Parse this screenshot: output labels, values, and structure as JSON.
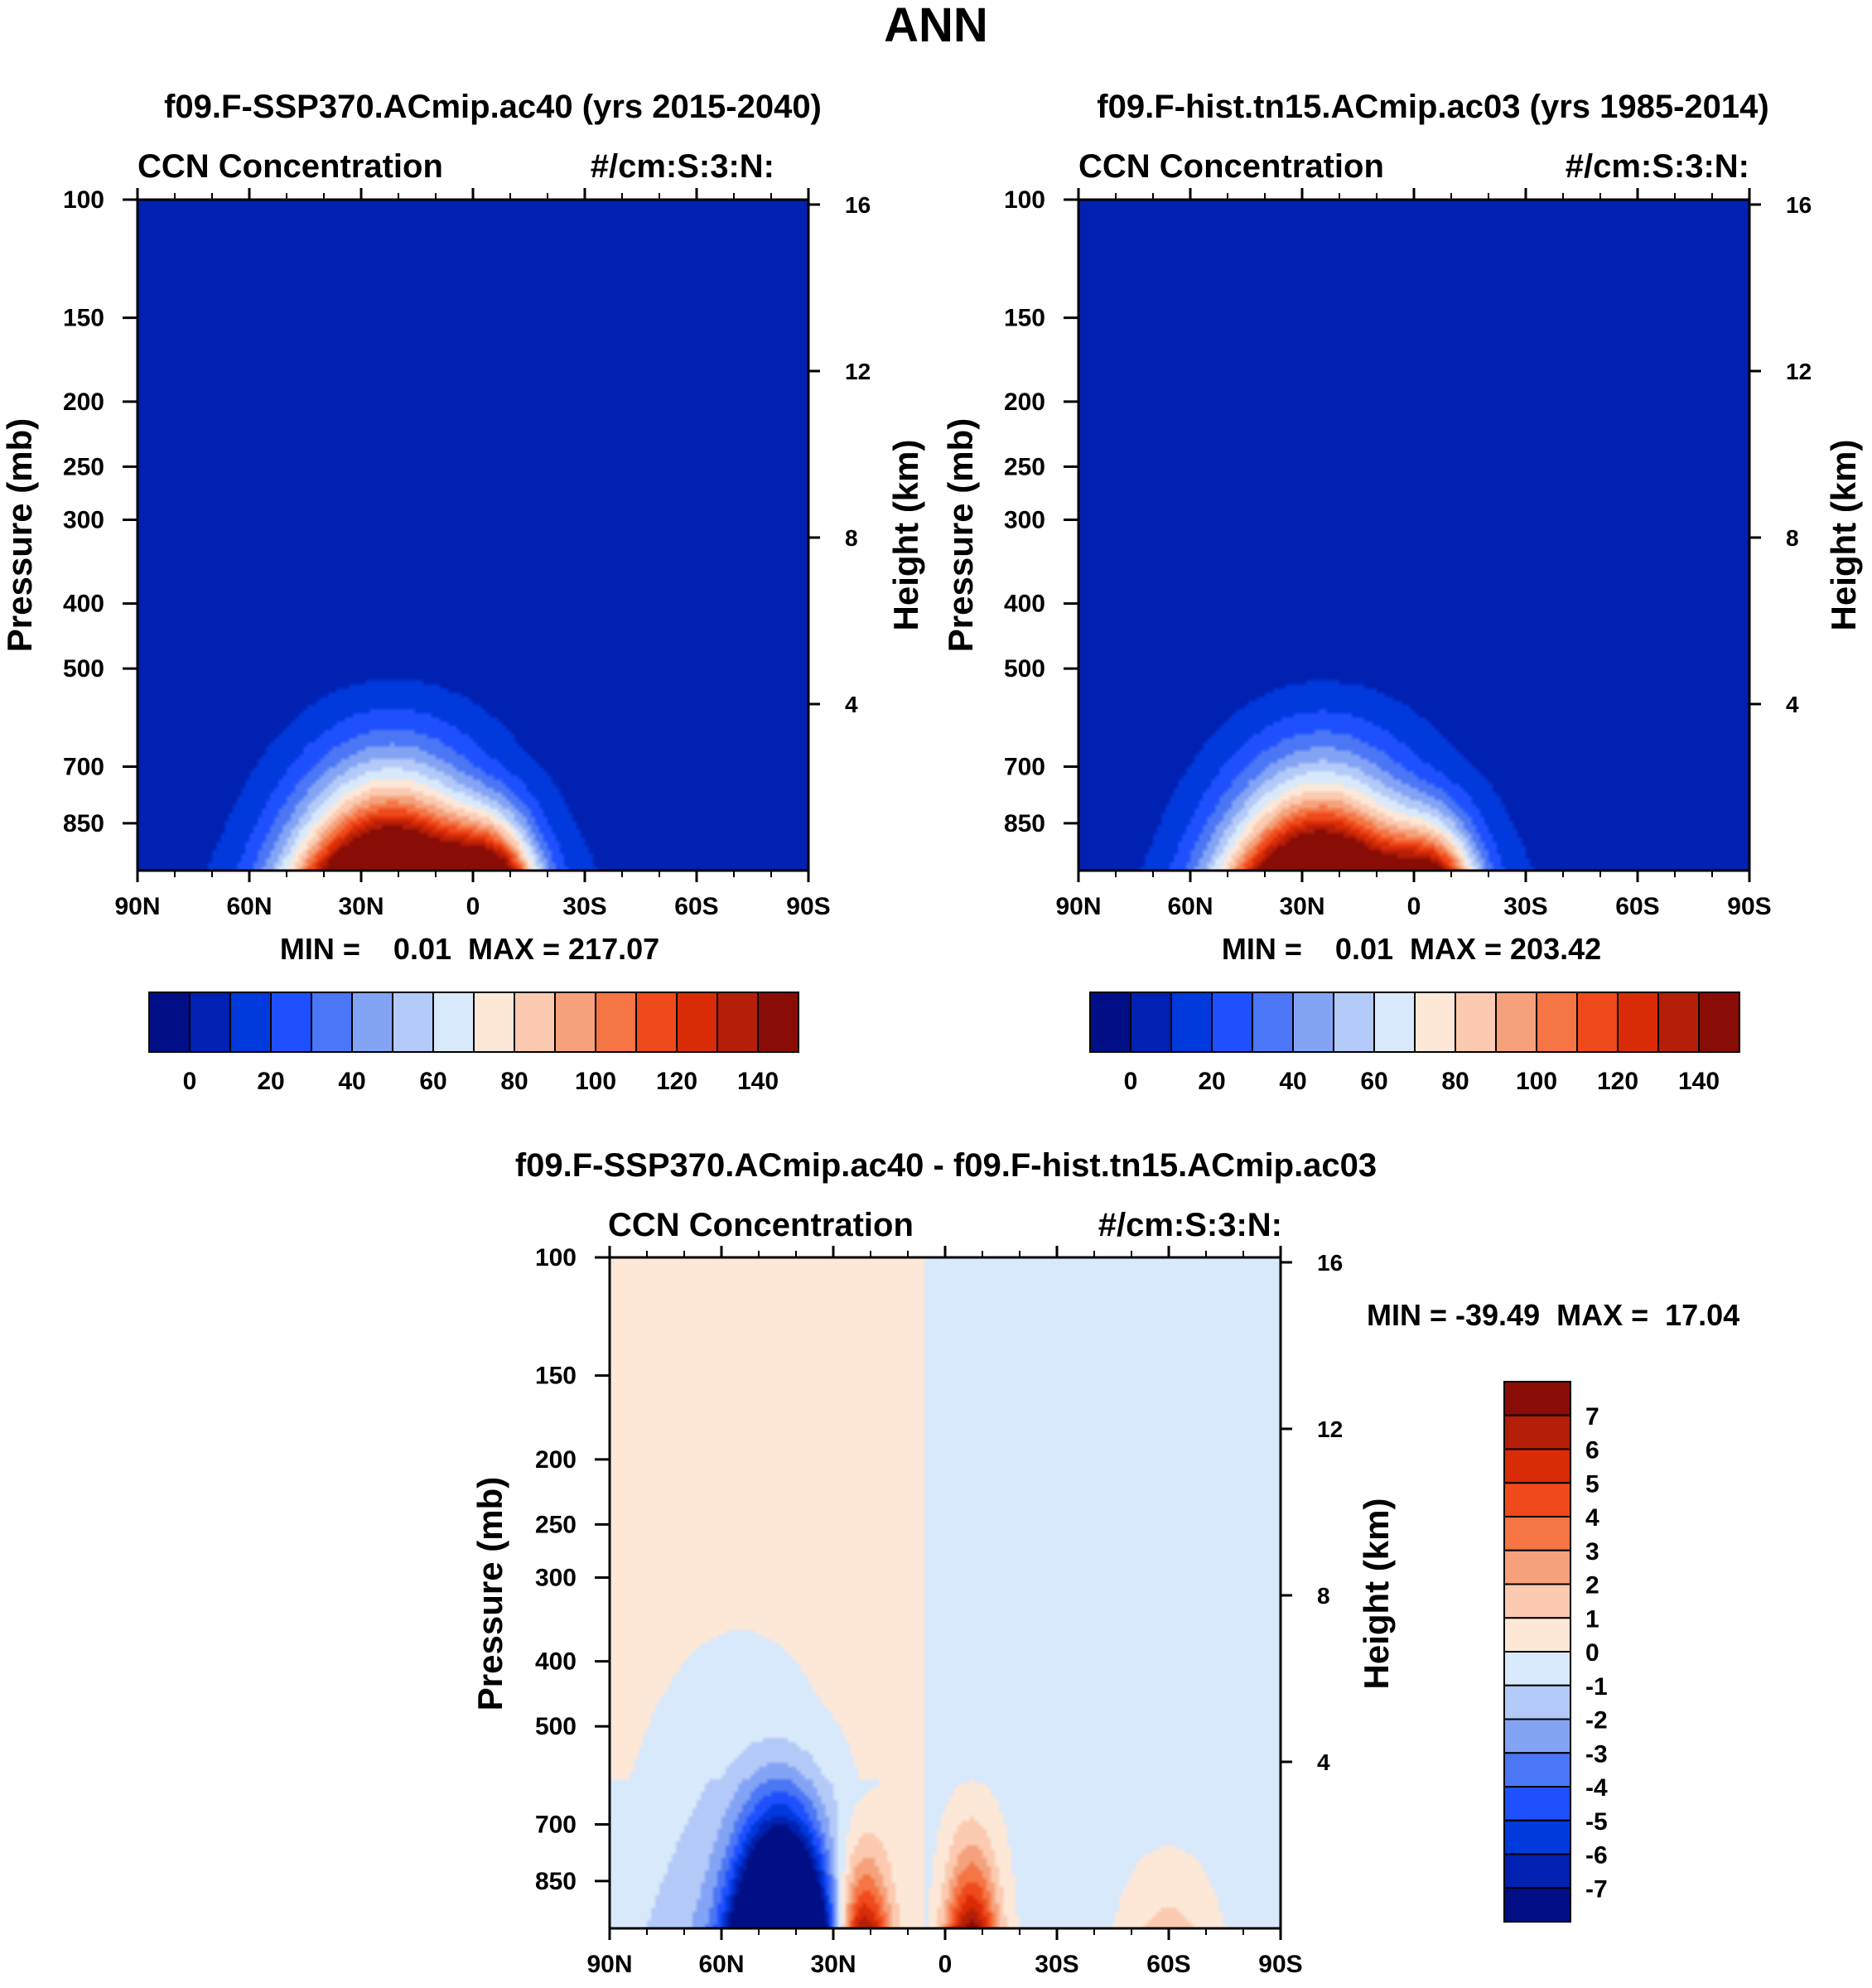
{
  "figure_title": "ANN",
  "colors": {
    "base_levels": [
      "#000f85",
      "#0021b2",
      "#0039dc",
      "#1f50ff",
      "#4b76f5",
      "#83a3f5",
      "#b3c9f7",
      "#d9e9fc",
      "#fde8d8",
      "#fbcab0",
      "#f5a27c",
      "#f57545",
      "#f04a1c",
      "#d92c06",
      "#b51e08",
      "#8a0c06"
    ],
    "diff_levels": [
      "#000f85",
      "#0021b2",
      "#0039dc",
      "#1f50ff",
      "#4b76f5",
      "#83a3f5",
      "#b3c9f7",
      "#d9e9fc",
      "#fde8d8",
      "#fbcab0",
      "#f5a27c",
      "#f57545",
      "#f04a1c",
      "#d92c06",
      "#b51e08",
      "#8a0c06"
    ]
  },
  "chart_data": [
    {
      "type": "heatmap",
      "title": "f09.F-SSP370.ACmip.ac40 (yrs 2015-2040)",
      "left_title": "CCN Concentration",
      "units": "#/cm:S:3:N:",
      "ylabel": "Pressure (mb)",
      "y2label": "Height (km)",
      "x_ticks": [
        "90N",
        "60N",
        "30N",
        "0",
        "30S",
        "60S",
        "90S"
      ],
      "y_ticks": [
        100,
        150,
        200,
        250,
        300,
        400,
        500,
        700,
        850
      ],
      "y_range": [
        100,
        1000
      ],
      "y2_ticks": [
        16,
        12,
        8,
        4
      ],
      "min_text": "MIN =    0.01",
      "max_text": "MAX = 217.07",
      "colorbar_labels": [
        "0",
        "20",
        "40",
        "60",
        "80",
        "100",
        "120",
        "140"
      ],
      "colorbar_levels": [
        0,
        10,
        20,
        30,
        40,
        50,
        60,
        70,
        80,
        90,
        100,
        110,
        120,
        130,
        140
      ],
      "field": {
        "peak1_lat": 22,
        "peak1_val": 217,
        "peak2_lat": -5,
        "peak2_val": 105,
        "top_p": 420
      }
    },
    {
      "type": "heatmap",
      "title": "f09.F-hist.tn15.ACmip.ac03 (yrs 1985-2014)",
      "left_title": "CCN Concentration",
      "units": "#/cm:S:3:N:",
      "ylabel": "Pressure (mb)",
      "y2label": "Height (km)",
      "x_ticks": [
        "90N",
        "60N",
        "30N",
        "0",
        "30S",
        "60S",
        "90S"
      ],
      "y_ticks": [
        100,
        150,
        200,
        250,
        300,
        400,
        500,
        700,
        850
      ],
      "y_range": [
        100,
        1000
      ],
      "y2_ticks": [
        16,
        12,
        8,
        4
      ],
      "min_text": "MIN =    0.01",
      "max_text": "MAX = 203.42",
      "colorbar_labels": [
        "0",
        "20",
        "40",
        "60",
        "80",
        "100",
        "120",
        "140"
      ],
      "colorbar_levels": [
        0,
        10,
        20,
        30,
        40,
        50,
        60,
        70,
        80,
        90,
        100,
        110,
        120,
        130,
        140
      ],
      "field": {
        "peak1_lat": 25,
        "peak1_val": 203,
        "peak2_lat": -5,
        "peak2_val": 95,
        "top_p": 410
      }
    },
    {
      "type": "heatmap",
      "title": "f09.F-SSP370.ACmip.ac40 - f09.F-hist.tn15.ACmip.ac03",
      "left_title": "CCN Concentration",
      "units": "#/cm:S:3:N:",
      "ylabel": "Pressure (mb)",
      "y2label": "Height (km)",
      "x_ticks": [
        "90N",
        "60N",
        "30N",
        "0",
        "30S",
        "60S",
        "90S"
      ],
      "y_ticks": [
        100,
        150,
        200,
        250,
        300,
        400,
        500,
        700,
        850
      ],
      "y_range": [
        100,
        1000
      ],
      "y2_ticks": [
        16,
        12,
        8,
        4
      ],
      "minmax_text": "MIN = -39.49  MAX =  17.04",
      "colorbar_labels": [
        "7",
        "6",
        "5",
        "4",
        "3",
        "2",
        "1",
        "0",
        "-1",
        "-2",
        "-3",
        "-4",
        "-5",
        "-6",
        "-7"
      ],
      "colorbar_levels": [
        7,
        6,
        5,
        4,
        3,
        2,
        1,
        0,
        -1,
        -2,
        -3,
        -4,
        -5,
        -6,
        -7
      ]
    }
  ]
}
